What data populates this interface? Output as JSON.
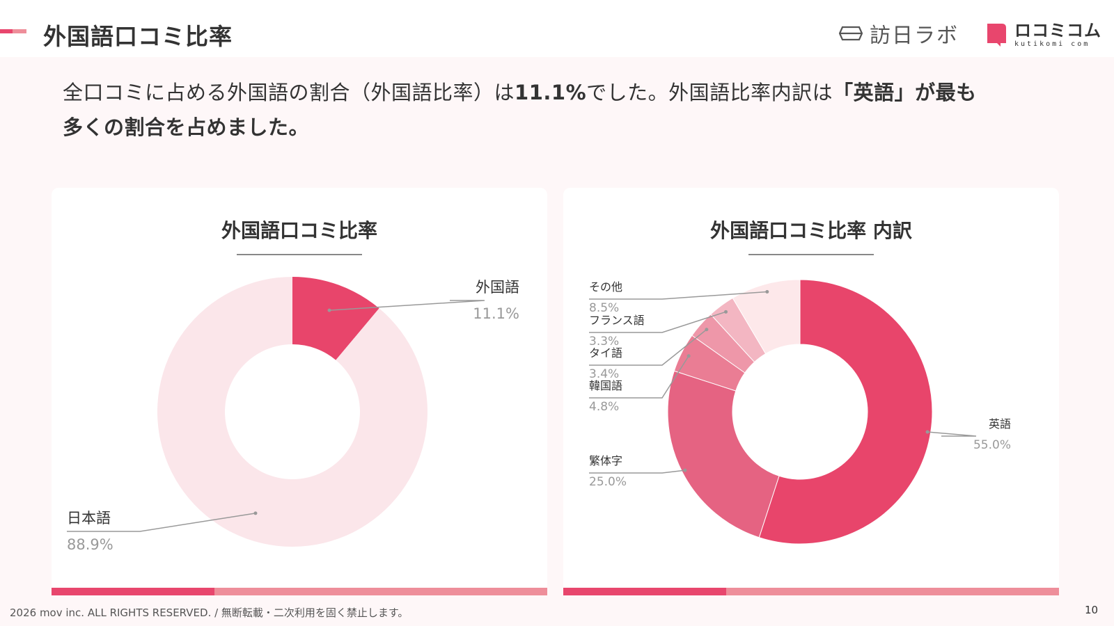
{
  "header": {
    "title": "外国語口コミ比率",
    "logo_houn_text": "訪日ラボ",
    "logo_kuti_main": "ロコミコム",
    "logo_kuti_sub": "kutikomi com"
  },
  "lead": {
    "part1": "全口コミに占める外国語の割合（外国語比率）は",
    "part2": "11.1%",
    "part3": "でした。外国語比率内訳は",
    "part4": "「英語」が最も",
    "part5": "多くの割合を占めました。"
  },
  "colors": {
    "accent": "#e8466d",
    "accent_light": "#ee8e9a",
    "page_bg": "#fef7f8"
  },
  "chart_data": [
    {
      "type": "pie",
      "title": "外国語口コミ比率",
      "donut": true,
      "slices": [
        {
          "label": "外国語",
          "value": 11.1,
          "value_label": "11.1%",
          "color": "#e8456b"
        },
        {
          "label": "日本語",
          "value": 88.9,
          "value_label": "88.9%",
          "color": "#fbe6ea"
        }
      ]
    },
    {
      "type": "pie",
      "title": "外国語口コミ比率 内訳",
      "donut": true,
      "slices": [
        {
          "label": "英語",
          "value": 55.0,
          "value_label": "55.0%",
          "color": "#e8456b"
        },
        {
          "label": "繁体字",
          "value": 25.0,
          "value_label": "25.0%",
          "color": "#e56382"
        },
        {
          "label": "韓国語",
          "value": 4.8,
          "value_label": "4.8%",
          "color": "#ea7d94"
        },
        {
          "label": "タイ語",
          "value": 3.4,
          "value_label": "3.4%",
          "color": "#ee97a9"
        },
        {
          "label": "フランス語",
          "value": 3.3,
          "value_label": "3.3%",
          "color": "#f3b6c2"
        },
        {
          "label": "その他",
          "value": 8.5,
          "value_label": "8.5%",
          "color": "#fde8ea"
        }
      ]
    }
  ],
  "footer": {
    "copyright": "2026 mov inc. ALL RIGHTS RESERVED. / 無断転載・二次利用を固く禁止します。",
    "page_number": "10"
  }
}
